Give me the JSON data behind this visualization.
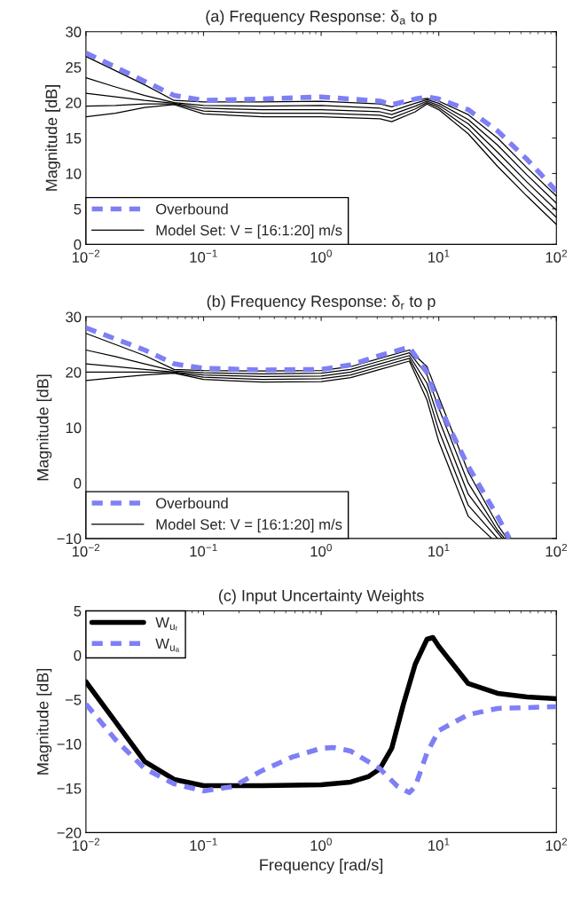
{
  "chart_data": [
    {
      "type": "line",
      "title": "(a) Frequency Response: δ$_{a}$ to p",
      "ylabel": "Magnitude [dB]",
      "log": "x",
      "legend": "bottom left",
      "grid": false,
      "xlim": [
        0.01,
        100
      ],
      "xticks": [
        {
          "value": 0.01,
          "label": "10$^{−2}$"
        },
        {
          "value": 0.1,
          "label": "10$^{−1}$"
        },
        {
          "value": 1,
          "label": "10$^{0}$"
        },
        {
          "value": 10,
          "label": "10$^{1}$"
        },
        {
          "value": 100,
          "label": "10$^{2}$"
        }
      ],
      "ylim": [
        0,
        30
      ],
      "yticks": [
        0,
        5,
        10,
        15,
        20,
        25,
        30
      ],
      "series": [
        {
          "name": "Overbound",
          "color": "#7f7ff5",
          "line_style": "dashed",
          "x": [
            0.01,
            0.0178,
            0.0316,
            0.0562,
            0.1,
            0.316,
            1,
            3.16,
            3.98,
            6.31,
            7.94,
            10,
            17.8,
            31.6,
            56.2,
            100
          ],
          "values": [
            27,
            25,
            23,
            21,
            20.3,
            20.5,
            20.8,
            20.2,
            19.7,
            20.5,
            20.8,
            20.5,
            19,
            16,
            12,
            7.5
          ]
        },
        {
          "name": "Model Set: V = [16:1:20] m/s",
          "color": "#000000",
          "line_style": "solid",
          "x": [
            0.01,
            0.0178,
            0.0316,
            0.0562,
            0.1,
            0.316,
            1,
            3.16,
            3.98,
            6.31,
            7.94,
            10,
            17.8,
            31.6,
            56.2,
            100
          ],
          "values": [
            26.5,
            24.5,
            22.5,
            20.3,
            20.1,
            20.1,
            20.2,
            19.8,
            19.4,
            20.3,
            20.6,
            20.2,
            18.3,
            15,
            10.8,
            6.8
          ]
        },
        {
          "color": "#000000",
          "line_style": "solid",
          "x": [
            0.01,
            0.0178,
            0.0316,
            0.0562,
            0.1,
            0.316,
            1,
            3.16,
            3.98,
            6.31,
            7.94,
            10,
            17.8,
            31.6,
            56.2,
            100
          ],
          "values": [
            23.5,
            22.2,
            21,
            20,
            19.6,
            19.5,
            19.6,
            19.2,
            18.8,
            19.9,
            20.4,
            19.9,
            17.6,
            14,
            9.8,
            5.8
          ]
        },
        {
          "color": "#000000",
          "line_style": "solid",
          "x": [
            0.01,
            0.0178,
            0.0316,
            0.0562,
            0.1,
            0.316,
            1,
            3.16,
            3.98,
            6.31,
            7.94,
            10,
            17.8,
            31.6,
            56.2,
            100
          ],
          "values": [
            21.3,
            20.8,
            20.3,
            19.9,
            19.2,
            19,
            19,
            18.7,
            18.3,
            19.5,
            20.2,
            19.6,
            17,
            13,
            8.8,
            4.8
          ]
        },
        {
          "color": "#000000",
          "line_style": "solid",
          "x": [
            0.01,
            0.0178,
            0.0316,
            0.0562,
            0.1,
            0.316,
            1,
            3.16,
            3.98,
            6.31,
            7.94,
            10,
            17.8,
            31.6,
            56.2,
            100
          ],
          "values": [
            19.5,
            19.6,
            19.8,
            19.8,
            18.8,
            18.5,
            18.5,
            18.2,
            17.8,
            19.1,
            20,
            19.3,
            16.3,
            12,
            7.8,
            3.8
          ]
        },
        {
          "color": "#000000",
          "line_style": "solid",
          "x": [
            0.01,
            0.0178,
            0.0316,
            0.0562,
            0.1,
            0.316,
            1,
            3.16,
            3.98,
            6.31,
            7.94,
            10,
            17.8,
            31.6,
            56.2,
            100
          ],
          "values": [
            18,
            18.5,
            19.3,
            19.7,
            18.4,
            18,
            18,
            17.7,
            17.3,
            18.7,
            19.8,
            19,
            15.6,
            11,
            6.8,
            2.8
          ]
        }
      ]
    },
    {
      "type": "line",
      "title": "(b) Frequency Response: δ$_{r}$ to p",
      "ylabel": "Magnitude [dB]",
      "log": "x",
      "legend": "bottom left",
      "grid": false,
      "xlim": [
        0.01,
        100
      ],
      "xticks": [
        {
          "value": 0.01,
          "label": "10$^{−2}$"
        },
        {
          "value": 0.1,
          "label": "10$^{−1}$"
        },
        {
          "value": 1,
          "label": "10$^{0}$"
        },
        {
          "value": 10,
          "label": "10$^{1}$"
        },
        {
          "value": 100,
          "label": "10$^{2}$"
        }
      ],
      "ylim": [
        -10,
        30
      ],
      "yticks": [
        {
          "value": -10,
          "label": "−10"
        },
        0,
        10,
        20,
        30
      ],
      "series": [
        {
          "name": "Overbound",
          "color": "#7f7ff5",
          "line_style": "dashed",
          "x": [
            0.01,
            0.0178,
            0.0316,
            0.0562,
            0.1,
            0.316,
            1,
            1.78,
            3.16,
            5.62,
            7.94,
            10,
            17.8,
            31.6,
            39.8
          ],
          "values": [
            28,
            26,
            24,
            21.5,
            20.7,
            20.4,
            20.5,
            21.3,
            23,
            24.5,
            20,
            14,
            3,
            -6,
            -10
          ]
        },
        {
          "name": "Model Set: V = [16:1:20] m/s",
          "color": "#000000",
          "line_style": "solid",
          "x": [
            0.01,
            0.0178,
            0.0316,
            0.0562,
            0.1,
            0.316,
            1,
            1.78,
            3.16,
            5.62,
            7.94,
            10,
            17.8,
            31.6,
            38
          ],
          "values": [
            27,
            25,
            23,
            20.5,
            20.3,
            20.2,
            20.3,
            21,
            22.5,
            24,
            21,
            15.5,
            2,
            -7.5,
            -10
          ]
        },
        {
          "color": "#000000",
          "line_style": "solid",
          "x": [
            0.01,
            0.0178,
            0.0316,
            0.0562,
            0.1,
            0.316,
            1,
            1.78,
            3.16,
            5.62,
            7.94,
            10,
            17.8,
            31.6,
            36.3
          ],
          "values": [
            24,
            22.8,
            21.5,
            20.2,
            19.9,
            19.7,
            19.8,
            20.5,
            22,
            23.5,
            19.5,
            13.5,
            0,
            -8.5,
            -10
          ]
        },
        {
          "color": "#000000",
          "line_style": "solid",
          "x": [
            0.01,
            0.0178,
            0.0316,
            0.0562,
            0.1,
            0.316,
            1,
            1.78,
            3.16,
            5.62,
            7.94,
            10,
            17.8,
            31.6,
            34.7
          ],
          "values": [
            21.5,
            21,
            20.5,
            20,
            19.5,
            19.2,
            19.3,
            20,
            21.5,
            23,
            18,
            11.5,
            -2,
            -9,
            -10
          ]
        },
        {
          "color": "#000000",
          "line_style": "solid",
          "x": [
            0.01,
            0.0178,
            0.0316,
            0.0562,
            0.1,
            0.316,
            1,
            1.78,
            3.16,
            5.62,
            7.94,
            10,
            17.8,
            31.6
          ],
          "values": [
            20,
            20,
            20,
            19.9,
            19.1,
            18.7,
            18.8,
            19.5,
            21,
            22.5,
            16.5,
            9.5,
            -4,
            -10
          ]
        },
        {
          "color": "#000000",
          "line_style": "solid",
          "x": [
            0.01,
            0.0178,
            0.0316,
            0.0562,
            0.1,
            0.316,
            1,
            1.78,
            3.16,
            5.62,
            7.94,
            10,
            17.8,
            28.2
          ],
          "values": [
            18.5,
            19,
            19.5,
            19.8,
            18.7,
            18.2,
            18.3,
            19,
            20.5,
            22,
            15,
            7.5,
            -6,
            -10
          ]
        }
      ]
    },
    {
      "type": "line",
      "title": "(c) Input Uncertainty Weights",
      "xlabel": "Frequency [rad/s]",
      "ylabel": "Magnitude [dB]",
      "log": "x",
      "legend": "top left",
      "grid": false,
      "xlim": [
        0.01,
        100
      ],
      "xticks": [
        {
          "value": 0.01,
          "label": "10$^{−2}$"
        },
        {
          "value": 0.1,
          "label": "10$^{−1}$"
        },
        {
          "value": 1,
          "label": "10$^{0}$"
        },
        {
          "value": 10,
          "label": "10$^{1}$"
        },
        {
          "value": 100,
          "label": "10$^{2}$"
        }
      ],
      "ylim": [
        -20,
        5
      ],
      "yticks": [
        {
          "value": -20,
          "label": "−20"
        },
        {
          "value": -15,
          "label": "−15"
        },
        {
          "value": -10,
          "label": "−10"
        },
        {
          "value": -5,
          "label": "−5"
        },
        0,
        5
      ],
      "series": [
        {
          "name": "W$_{uᵣ}$",
          "color": "#000000",
          "line_style": "solid",
          "x": [
            0.01,
            0.0178,
            0.0316,
            0.0562,
            0.1,
            0.316,
            1,
            1.78,
            2.51,
            3.16,
            3.98,
            5.01,
            6.31,
            7.94,
            8.91,
            10,
            17.8,
            31.6,
            56.2,
            100
          ],
          "values": [
            -3,
            -7.5,
            -12,
            -14,
            -14.7,
            -14.7,
            -14.6,
            -14.3,
            -13.7,
            -12.8,
            -10.5,
            -5.5,
            -1,
            1.8,
            2,
            1,
            -3.2,
            -4.3,
            -4.7,
            -4.9
          ]
        },
        {
          "name": "W$_{uₐ}$",
          "color": "#7f7ff5",
          "line_style": "dashed",
          "x": [
            0.01,
            0.0178,
            0.0316,
            0.0562,
            0.1,
            0.178,
            0.316,
            0.562,
            1,
            1.26,
            1.78,
            3.16,
            4.47,
            5.62,
            6.31,
            7.94,
            10,
            17.8,
            31.6,
            100
          ],
          "values": [
            -5.5,
            -9.5,
            -12.8,
            -14.5,
            -15.3,
            -14.8,
            -13,
            -11.5,
            -10.5,
            -10.4,
            -10.8,
            -12.8,
            -14.8,
            -15.5,
            -14.8,
            -11,
            -8.5,
            -6.7,
            -6,
            -5.8
          ]
        }
      ]
    }
  ]
}
